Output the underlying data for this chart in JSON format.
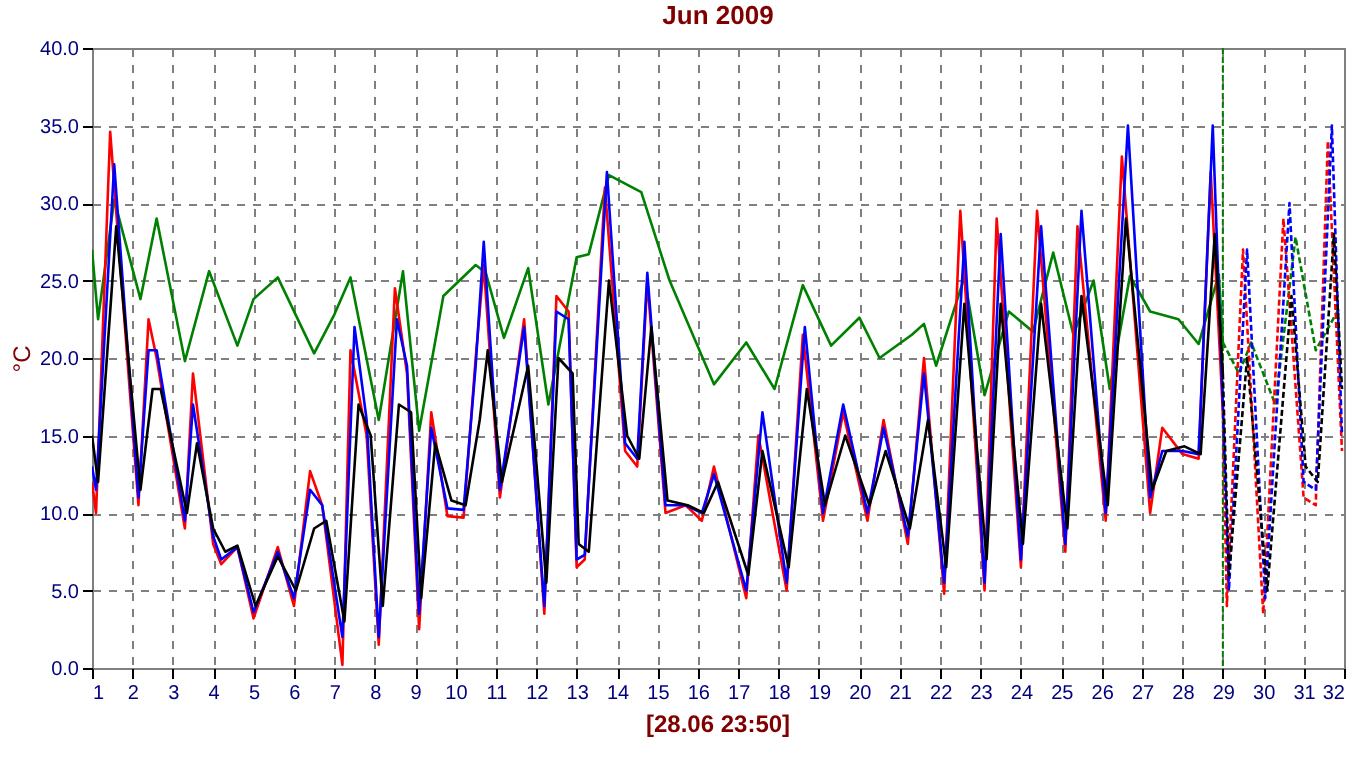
{
  "chart_data": {
    "type": "line",
    "title": "Jun 2009",
    "ylabel": "°C",
    "annotations": [
      "[28.06 23:50]"
    ],
    "xlim": [
      1,
      32
    ],
    "xticks": [
      1,
      2,
      3,
      4,
      5,
      6,
      7,
      8,
      9,
      10,
      11,
      12,
      13,
      14,
      15,
      16,
      17,
      18,
      19,
      20,
      21,
      22,
      23,
      24,
      25,
      26,
      27,
      28,
      29,
      30,
      31,
      32
    ],
    "ylim": [
      0,
      40
    ],
    "yticks": [
      {
        "value": 0,
        "label": "0.0"
      },
      {
        "value": 5,
        "label": "5.0"
      },
      {
        "value": 10,
        "label": "10.0"
      },
      {
        "value": 15,
        "label": "15.0"
      },
      {
        "value": 20,
        "label": "20.0"
      },
      {
        "value": 25,
        "label": "25.0"
      },
      {
        "value": 30,
        "label": "30.0"
      },
      {
        "value": 35,
        "label": "35.0"
      },
      {
        "value": 40,
        "label": "40.0"
      }
    ],
    "grid": true,
    "ref_lines": [
      {
        "axis": "x",
        "value": 29,
        "color": "#008000",
        "line_style": "dashed"
      }
    ],
    "series": [
      {
        "color": "#008000",
        "line_style": "solid",
        "x": [
          1.0,
          1.15,
          1.55,
          2.2,
          2.6,
          3.3,
          3.9,
          4.6,
          5.0,
          5.6,
          6.5,
          7.0,
          7.4,
          8.1,
          8.7,
          9.1,
          9.7,
          10.5,
          10.75,
          11.2,
          11.8,
          12.3,
          13.0,
          13.3,
          13.8,
          14.6,
          15.3,
          16.4,
          17.2,
          17.9,
          18.6,
          19.3,
          20.0,
          20.5,
          21.3,
          21.6,
          21.9,
          22.6,
          23.1,
          23.7,
          24.3,
          24.8,
          25.3,
          25.8,
          26.2,
          26.7,
          27.2,
          27.9,
          28.4,
          28.9,
          29.0
        ],
        "values": [
          27,
          22.5,
          30.2,
          23.8,
          29,
          19.8,
          25.6,
          20.8,
          23.8,
          25.2,
          20.3,
          22.8,
          25.2,
          16,
          25.6,
          15.3,
          24,
          26,
          25.5,
          21.3,
          25.8,
          17,
          26.5,
          26.7,
          31.8,
          30.7,
          25,
          18.3,
          21,
          18,
          24.7,
          20.8,
          22.6,
          20,
          21.5,
          22.2,
          19.5,
          25.2,
          17.6,
          23,
          21.7,
          26.8,
          21.5,
          25,
          18,
          25.3,
          23,
          22.5,
          20.9,
          25.4,
          21
        ]
      },
      {
        "color": "#ff0000",
        "line_style": "solid",
        "x": [
          1.0,
          1.1,
          1.45,
          2.15,
          2.4,
          2.6,
          3.3,
          3.5,
          4.0,
          4.2,
          4.6,
          5.0,
          5.6,
          6.0,
          6.4,
          6.7,
          7.2,
          7.4,
          7.8,
          8.1,
          8.5,
          8.8,
          9.1,
          9.4,
          9.8,
          10.2,
          10.5,
          10.7,
          11.1,
          11.7,
          12.2,
          12.5,
          12.8,
          13.0,
          13.2,
          13.7,
          14.2,
          14.5,
          14.75,
          15.2,
          15.7,
          16.1,
          16.4,
          17.2,
          17.5,
          18.2,
          18.6,
          19.1,
          19.6,
          20.2,
          20.6,
          21.2,
          21.6,
          22.1,
          22.5,
          23.1,
          23.4,
          24.0,
          24.4,
          25.1,
          25.4,
          26.1,
          26.5,
          27.2,
          27.5,
          28.0,
          28.4,
          28.7,
          29.0
        ],
        "values": [
          12,
          10,
          34.6,
          10.5,
          22.5,
          20,
          9,
          19,
          8,
          6.7,
          7.8,
          3.2,
          7.8,
          4,
          12.7,
          10.5,
          0.2,
          20.5,
          15,
          1.5,
          24.5,
          19,
          2.5,
          16.5,
          9.8,
          9.7,
          20,
          26,
          11,
          22.5,
          3.5,
          24,
          23,
          6.5,
          7,
          31,
          14,
          13,
          25,
          10,
          10.5,
          9.5,
          13,
          4.5,
          15,
          5,
          21.5,
          9.5,
          16.5,
          9.5,
          16,
          8,
          20,
          4.8,
          29.5,
          5,
          29,
          6.5,
          29.5,
          7.5,
          28.5,
          9.5,
          33,
          10,
          15.5,
          13.8,
          13.5,
          32,
          16.5
        ]
      },
      {
        "color": "#0000ff",
        "line_style": "solid",
        "x": [
          1.0,
          1.1,
          1.55,
          2.15,
          2.4,
          2.6,
          3.3,
          3.5,
          4.0,
          4.2,
          4.6,
          5.0,
          5.6,
          6.0,
          6.4,
          6.7,
          7.2,
          7.5,
          7.8,
          8.1,
          8.55,
          8.8,
          9.1,
          9.4,
          9.8,
          10.2,
          10.5,
          10.7,
          11.1,
          11.7,
          12.2,
          12.5,
          12.8,
          13.0,
          13.2,
          13.75,
          14.2,
          14.5,
          14.75,
          15.2,
          15.7,
          16.1,
          16.4,
          17.2,
          17.6,
          18.2,
          18.65,
          19.1,
          19.6,
          20.2,
          20.6,
          21.2,
          21.6,
          22.1,
          22.6,
          23.1,
          23.5,
          24.0,
          24.5,
          25.1,
          25.5,
          26.1,
          26.65,
          27.2,
          27.5,
          28.0,
          28.4,
          28.75,
          29.0
        ],
        "values": [
          13,
          11.5,
          32.5,
          11,
          20.5,
          20.5,
          9.5,
          17,
          8.5,
          7,
          7.8,
          3.6,
          7.5,
          4.5,
          11.5,
          10.5,
          2,
          22,
          16,
          2,
          22.5,
          19.5,
          3.5,
          15.5,
          10.3,
          10.2,
          19.5,
          27.5,
          11.5,
          22,
          4,
          23,
          22.5,
          7,
          7.3,
          32,
          14.5,
          13.5,
          25.5,
          10.5,
          10.5,
          10,
          12.5,
          5,
          16.5,
          5.5,
          22,
          10,
          17,
          10,
          15.5,
          8.5,
          19,
          5.5,
          27.5,
          5.5,
          28,
          7,
          28.5,
          8,
          29.5,
          10,
          35,
          11,
          14,
          14,
          13.8,
          35,
          17
        ]
      },
      {
        "color": "#000000",
        "line_style": "solid",
        "x": [
          1.0,
          1.15,
          1.6,
          2.2,
          2.5,
          2.7,
          3.35,
          3.6,
          4.0,
          4.3,
          4.6,
          5.05,
          5.6,
          6.05,
          6.5,
          6.8,
          7.25,
          7.6,
          7.9,
          8.2,
          8.6,
          8.9,
          9.15,
          9.5,
          9.9,
          10.25,
          10.6,
          10.8,
          11.15,
          11.8,
          12.25,
          12.55,
          12.9,
          13.05,
          13.3,
          13.8,
          14.25,
          14.55,
          14.85,
          15.25,
          15.75,
          16.15,
          16.5,
          17.25,
          17.6,
          18.25,
          18.7,
          19.15,
          19.65,
          20.25,
          20.65,
          21.25,
          21.7,
          22.15,
          22.6,
          23.15,
          23.5,
          24.05,
          24.5,
          25.15,
          25.5,
          26.15,
          26.6,
          27.25,
          27.6,
          28.05,
          28.45,
          28.8,
          29.0
        ],
        "values": [
          15,
          12,
          28.5,
          11.5,
          18,
          18,
          10,
          14.5,
          9,
          7.5,
          7.9,
          4,
          7.2,
          5,
          9,
          9.5,
          3,
          17,
          15,
          4,
          17,
          16.5,
          4.5,
          14.5,
          10.8,
          10.5,
          16,
          20.5,
          12,
          19.5,
          5.5,
          20,
          19,
          8,
          7.5,
          25,
          15,
          13.5,
          22,
          10.8,
          10.5,
          10,
          12,
          6,
          14,
          6.5,
          18,
          10.5,
          15,
          10.5,
          14,
          9,
          16,
          6.5,
          23.5,
          7,
          23.5,
          8,
          23.5,
          9,
          24,
          10.5,
          29,
          11.5,
          14,
          14.3,
          13.8,
          28,
          19
        ]
      },
      {
        "color": "#008000",
        "line_style": "dashed",
        "x": [
          29.0,
          29.4,
          29.7,
          30.3,
          30.8,
          31.3,
          31.9
        ],
        "values": [
          21,
          19,
          21,
          17,
          27.8,
          20.5,
          23.3
        ]
      },
      {
        "color": "#ff0000",
        "line_style": "dashed",
        "x": [
          29.0,
          29.1,
          29.5,
          30.0,
          30.5,
          31.0,
          31.3,
          31.6,
          31.95
        ],
        "values": [
          16.5,
          4,
          27,
          3.5,
          29,
          11,
          10.5,
          34,
          14
        ]
      },
      {
        "color": "#0000ff",
        "line_style": "dashed",
        "x": [
          29.0,
          29.15,
          29.6,
          30.05,
          30.65,
          31.0,
          31.3,
          31.7,
          31.95
        ],
        "values": [
          17,
          5,
          27,
          4.5,
          30,
          12,
          11.5,
          35,
          15
        ]
      },
      {
        "color": "#000000",
        "line_style": "dashed",
        "x": [
          29.0,
          29.15,
          29.6,
          30.1,
          30.7,
          31.05,
          31.35,
          31.75,
          31.95
        ],
        "values": [
          19,
          6,
          20,
          5,
          24,
          13,
          12,
          28,
          18
        ]
      }
    ]
  }
}
